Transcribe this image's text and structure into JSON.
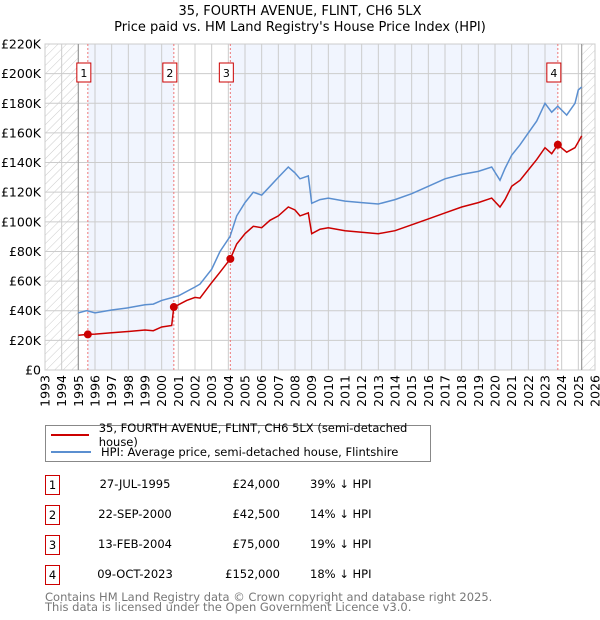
{
  "title_line1": "35, FOURTH AVENUE, FLINT, CH6 5LX",
  "title_line2": "Price paid vs. HM Land Registry's House Price Index (HPI)",
  "legend": [
    {
      "label": "35, FOURTH AVENUE, FLINT, CH6 5LX (semi-detached house)",
      "color": "#cc0000"
    },
    {
      "label": "HPI: Average price, semi-detached house, Flintshire",
      "color": "#5b8fd0"
    }
  ],
  "sales": [
    {
      "num": "1",
      "date": "27-JUL-1995",
      "price": "£24,000",
      "hpi": "39% ↓ HPI"
    },
    {
      "num": "2",
      "date": "22-SEP-2000",
      "price": "£42,500",
      "hpi": "14% ↓ HPI"
    },
    {
      "num": "3",
      "date": "13-FEB-2004",
      "price": "£75,000",
      "hpi": "19% ↓ HPI"
    },
    {
      "num": "4",
      "date": "09-OCT-2023",
      "price": "£152,000",
      "hpi": "18% ↓ HPI"
    }
  ],
  "footer": [
    "Contains HM Land Registry data © Crown copyright and database right 2025.",
    "This data is licensed under the Open Government Licence v3.0."
  ],
  "chart_data": {
    "type": "line",
    "xlim": [
      1993,
      2026
    ],
    "ylim": [
      0,
      220000
    ],
    "yticks": [
      0,
      20000,
      40000,
      60000,
      80000,
      100000,
      120000,
      140000,
      160000,
      180000,
      200000,
      220000
    ],
    "ytick_labels": [
      "£0",
      "£20K",
      "£40K",
      "£60K",
      "£80K",
      "£100K",
      "£120K",
      "£140K",
      "£160K",
      "£180K",
      "£200K",
      "£220K"
    ],
    "xticks": [
      "1993",
      "1994",
      "1995",
      "1996",
      "1997",
      "1998",
      "1999",
      "2000",
      "2001",
      "2002",
      "2003",
      "2004",
      "2005",
      "2006",
      "2007",
      "2008",
      "2009",
      "2010",
      "2011",
      "2012",
      "2013",
      "2014",
      "2015",
      "2016",
      "2017",
      "2018",
      "2019",
      "2020",
      "2021",
      "2022",
      "2023",
      "2024",
      "2025",
      "2026"
    ],
    "data_range": [
      1995.0,
      2025.2
    ],
    "sale_points": [
      {
        "label": "1",
        "x": 1995.57,
        "y": 24000
      },
      {
        "label": "2",
        "x": 2000.73,
        "y": 42500
      },
      {
        "label": "3",
        "x": 2004.12,
        "y": 75000
      },
      {
        "label": "4",
        "x": 2023.77,
        "y": 152000
      }
    ],
    "series": [
      {
        "name": "35, FOURTH AVENUE, FLINT, CH6 5LX (semi-detached house)",
        "color": "#cc0000",
        "x": [
          1995.0,
          1995.57,
          1996,
          1997,
          1998,
          1999,
          1999.5,
          2000,
          2000.6,
          2000.73,
          2001,
          2001.5,
          2002,
          2002.3,
          2003,
          2003.5,
          2004.12,
          2004.5,
          2005,
          2005.5,
          2006,
          2006.5,
          2007,
          2007.6,
          2008.0,
          2008.3,
          2008.8,
          2009.0,
          2009.5,
          2010,
          2011,
          2012,
          2013,
          2014,
          2015,
          2016,
          2017,
          2018,
          2019,
          2019.8,
          2020.3,
          2020.6,
          2021,
          2021.5,
          2022,
          2022.5,
          2023,
          2023.4,
          2023.77,
          2024.3,
          2024.8,
          2025.2
        ],
        "y": [
          23500,
          24000,
          24200,
          25200,
          26000,
          27000,
          26500,
          29000,
          30000,
          42500,
          44000,
          47000,
          49000,
          48500,
          59000,
          66000,
          75000,
          85000,
          92000,
          97000,
          96000,
          101000,
          104000,
          110000,
          108000,
          104000,
          106000,
          92000,
          95000,
          96000,
          94000,
          93000,
          92000,
          94000,
          98000,
          102000,
          106000,
          110000,
          113000,
          116000,
          110000,
          115000,
          124000,
          128000,
          135000,
          142000,
          150000,
          146000,
          152000,
          147000,
          150000,
          158000
        ]
      },
      {
        "name": "HPI: Average price, semi-detached house, Flintshire",
        "color": "#5b8fd0",
        "x": [
          1995.0,
          1995.5,
          1996,
          1997,
          1998,
          1999,
          1999.5,
          2000,
          2001,
          2002,
          2002.3,
          2003,
          2003.5,
          2004.1,
          2004.5,
          2005,
          2005.5,
          2006,
          2006.5,
          2007,
          2007.6,
          2008.0,
          2008.3,
          2008.8,
          2009.0,
          2009.5,
          2010,
          2011,
          2012,
          2013,
          2014,
          2015,
          2016,
          2017,
          2018,
          2019,
          2019.8,
          2020.3,
          2020.6,
          2021,
          2021.5,
          2022,
          2022.5,
          2023,
          2023.4,
          2023.77,
          2024.3,
          2024.8,
          2025.0,
          2025.2
        ],
        "y": [
          38500,
          40000,
          38500,
          40500,
          42000,
          44000,
          44500,
          47000,
          50000,
          56000,
          58000,
          68000,
          80000,
          90000,
          104000,
          113000,
          120000,
          118000,
          124000,
          130000,
          137000,
          133000,
          129000,
          131000,
          112500,
          115000,
          116000,
          114000,
          113000,
          112000,
          115000,
          119000,
          124000,
          129000,
          132000,
          134000,
          137000,
          128000,
          136000,
          145000,
          152000,
          160000,
          168000,
          180000,
          174000,
          178000,
          172000,
          180000,
          189000,
          191000
        ]
      }
    ]
  }
}
